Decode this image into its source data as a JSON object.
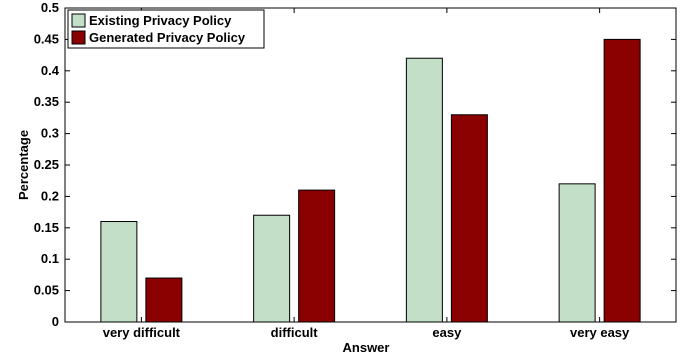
{
  "chart_data": {
    "type": "bar",
    "xlabel": "Answer",
    "ylabel": "Percentage",
    "categories": [
      "very difficult",
      "difficult",
      "easy",
      "very easy"
    ],
    "series": [
      {
        "name": "Existing Privacy Policy",
        "values": [
          0.16,
          0.17,
          0.42,
          0.22
        ],
        "color": "#c3dfc8"
      },
      {
        "name": "Generated Privacy Policy",
        "values": [
          0.07,
          0.21,
          0.33,
          0.45
        ],
        "color": "#8b0000"
      }
    ],
    "ylim": [
      0,
      0.5
    ],
    "yticks": [
      "0",
      "0.05",
      "0.1",
      "0.15",
      "0.2",
      "0.25",
      "0.3",
      "0.35",
      "0.4",
      "0.45",
      "0.5"
    ],
    "grid": false,
    "legend_position": "top-left"
  }
}
